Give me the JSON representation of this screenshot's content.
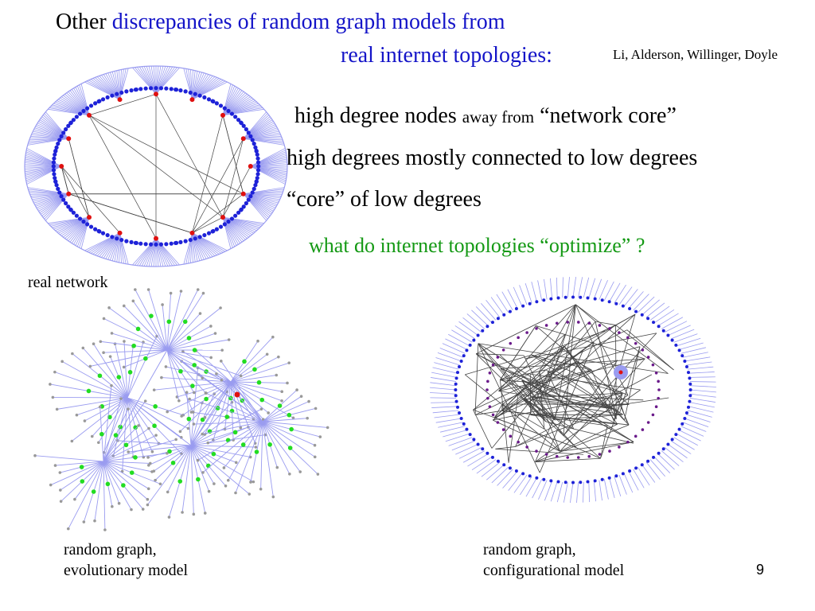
{
  "slide": {
    "title_prefix": "Other",
    "title_line1_blue": "discrepancies of random graph models from",
    "title_line2": "real internet topologies:",
    "citation": "Li, Alderson, Willinger, Doyle",
    "bullets": [
      {
        "main": "high degree nodes",
        "small": "away from",
        "tail": "“network core”"
      },
      {
        "main": "high degrees mostly connected to low degrees"
      },
      {
        "main": "“core” of low degrees"
      }
    ],
    "question": "what do internet topologies “optimize” ?",
    "labels": {
      "real_network": "real network",
      "evolutionary_line1": "random graph,",
      "evolutionary_line2": "evolutionary model",
      "configurational_line1": "random graph,",
      "configurational_line2": "configurational model"
    },
    "page_number": "9"
  },
  "colors": {
    "title_blue": "#1414c8",
    "question_green": "#149914",
    "edge_lavender": "#9a9cf0",
    "node_blue": "#1e22d8",
    "node_red": "#e01010",
    "node_green": "#22dd22",
    "edge_dark": "#444444"
  }
}
